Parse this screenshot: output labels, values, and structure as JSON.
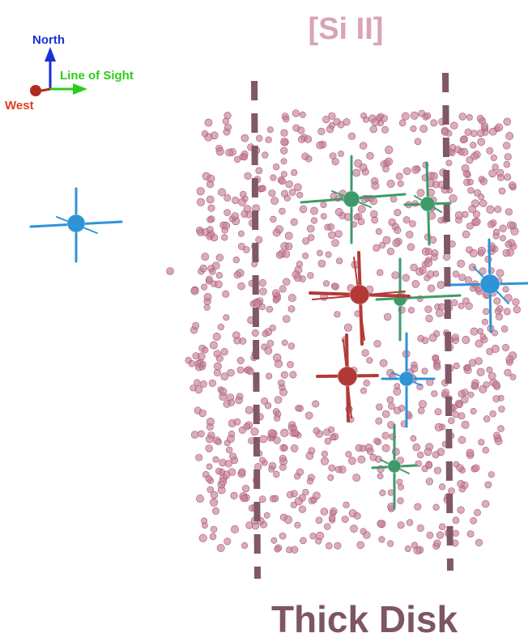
{
  "title": "[Si II]",
  "footer_label": "Thick Disk",
  "orientation": {
    "north": "North",
    "line_of_sight": "Line of Sight",
    "west": "West"
  },
  "colors": {
    "title": "#d9a3b8",
    "footer": "#7d5563",
    "cloud_fill": "#c67f98",
    "cloud_stroke": "#a85a78",
    "disk_line": "#80586a",
    "north": "#1a2fd6",
    "line_of_sight": "#2ecc1f",
    "west": "#e0401f",
    "marker_blue": "#2f93d6",
    "marker_green": "#3f9a6a",
    "marker_red": "#b23a36"
  },
  "point_count": 900,
  "marker_groups": [
    {
      "color": "marker_blue",
      "name": "blue-marker"
    },
    {
      "color": "marker_green",
      "name": "green-marker"
    },
    {
      "color": "marker_red",
      "name": "red-marker"
    }
  ]
}
